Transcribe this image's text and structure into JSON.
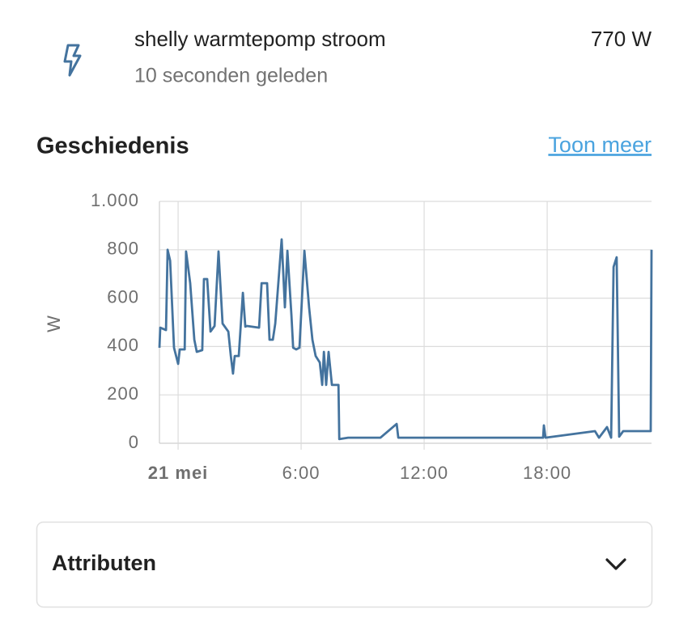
{
  "header": {
    "name": "shelly warmtepomp stroom",
    "last_changed": "10 seconden geleden",
    "state": "770 W"
  },
  "history": {
    "title": "Geschiedenis",
    "link": "Toon meer"
  },
  "chart_data": {
    "type": "line",
    "ylabel": "W",
    "color": "#44739e",
    "grid": true,
    "xlim": [
      -0.91,
      23.09
    ],
    "ylim": [
      0,
      1000
    ],
    "xticks": [
      {
        "value": 0,
        "label": "21 mei"
      },
      {
        "value": 6,
        "label": "6:00"
      },
      {
        "value": 12,
        "label": "12:00"
      },
      {
        "value": 18,
        "label": "18:00"
      }
    ],
    "yticks": [
      0,
      200,
      400,
      600,
      800,
      {
        "value": 1000,
        "label": "1.000"
      }
    ],
    "x": [
      -0.91,
      -0.87,
      -0.59,
      -0.51,
      -0.39,
      -0.2,
      0,
      0.08,
      0.32,
      0.39,
      0.59,
      0.79,
      0.91,
      1.18,
      1.26,
      1.42,
      1.58,
      1.78,
      1.97,
      2.17,
      2.45,
      2.57,
      2.68,
      2.76,
      2.96,
      3.16,
      3.28,
      3.36,
      3.95,
      4.07,
      4.34,
      4.46,
      4.62,
      4.74,
      5.05,
      5.21,
      5.33,
      5.53,
      5.61,
      5.76,
      5.92,
      6.16,
      6.39,
      6.55,
      6.71,
      6.91,
      7.03,
      7.11,
      7.22,
      7.34,
      7.5,
      7.82,
      7.86,
      8.29,
      9.87,
      10.66,
      10.74,
      17.8,
      17.84,
      17.92,
      20.33,
      20.53,
      20.92,
      21.12,
      21.24,
      21.39,
      21.51,
      21.71,
      23.05,
      23.09
    ],
    "values": [
      395,
      478,
      468,
      800,
      755,
      395,
      328,
      388,
      388,
      793,
      662,
      428,
      378,
      385,
      679,
      679,
      462,
      485,
      793,
      495,
      462,
      361,
      288,
      361,
      361,
      622,
      482,
      485,
      478,
      662,
      662,
      428,
      428,
      495,
      843,
      562,
      796,
      528,
      395,
      388,
      395,
      796,
      562,
      428,
      361,
      334,
      241,
      378,
      241,
      378,
      241,
      241,
      17,
      23,
      23,
      80,
      23,
      23,
      74,
      23,
      50,
      23,
      67,
      23,
      729,
      769,
      27,
      50,
      50,
      800
    ]
  },
  "attributes": {
    "title": "Attributen"
  }
}
